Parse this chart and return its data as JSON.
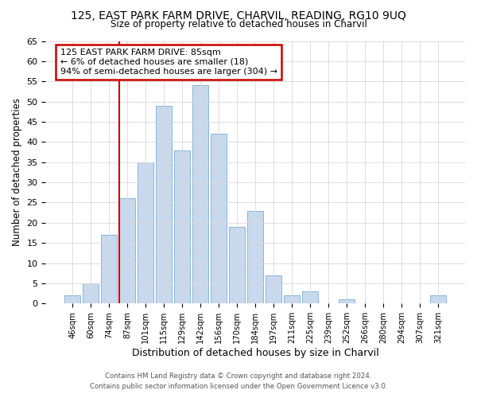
{
  "title": "125, EAST PARK FARM DRIVE, CHARVIL, READING, RG10 9UQ",
  "subtitle": "Size of property relative to detached houses in Charvil",
  "xlabel": "Distribution of detached houses by size in Charvil",
  "ylabel": "Number of detached properties",
  "bar_labels": [
    "46sqm",
    "60sqm",
    "74sqm",
    "87sqm",
    "101sqm",
    "115sqm",
    "129sqm",
    "142sqm",
    "156sqm",
    "170sqm",
    "184sqm",
    "197sqm",
    "211sqm",
    "225sqm",
    "239sqm",
    "252sqm",
    "266sqm",
    "280sqm",
    "294sqm",
    "307sqm",
    "321sqm"
  ],
  "bar_values": [
    2,
    5,
    17,
    26,
    35,
    49,
    38,
    54,
    42,
    19,
    23,
    7,
    2,
    3,
    0,
    1,
    0,
    0,
    0,
    0,
    2
  ],
  "bar_color": "#c8d9ee",
  "bar_edge_color": "#8ab4d8",
  "annotation_title": "125 EAST PARK FARM DRIVE: 85sqm",
  "annotation_line1": "← 6% of detached houses are smaller (18)",
  "annotation_line2": "94% of semi-detached houses are larger (304) →",
  "annotation_box_edge_color": "#cc0000",
  "reference_line_color": "#cc0000",
  "ylim": [
    0,
    65
  ],
  "yticks": [
    0,
    5,
    10,
    15,
    20,
    25,
    30,
    35,
    40,
    45,
    50,
    55,
    60,
    65
  ],
  "footer_line1": "Contains HM Land Registry data © Crown copyright and database right 2024.",
  "footer_line2": "Contains public sector information licensed under the Open Government Licence v3.0.",
  "bg_color": "#ffffff",
  "grid_color": "#d8d8d8"
}
